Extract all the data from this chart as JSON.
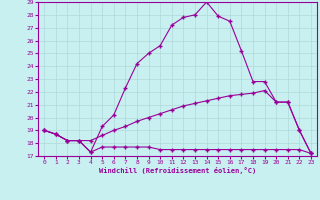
{
  "xlabel": "Windchill (Refroidissement éolien,°C)",
  "bg_color": "#c8f0f0",
  "line_color": "#990099",
  "grid_color": "#b0d8d8",
  "xlim": [
    -0.5,
    23.5
  ],
  "ylim": [
    17,
    29
  ],
  "yticks": [
    17,
    18,
    19,
    20,
    21,
    22,
    23,
    24,
    25,
    26,
    27,
    28,
    29
  ],
  "xticks": [
    0,
    1,
    2,
    3,
    4,
    5,
    6,
    7,
    8,
    9,
    10,
    11,
    12,
    13,
    14,
    15,
    16,
    17,
    18,
    19,
    20,
    21,
    22,
    23
  ],
  "curve1_x": [
    0,
    1,
    2,
    3,
    4,
    5,
    6,
    7,
    8,
    9,
    10,
    11,
    12,
    13,
    14,
    15,
    16,
    17,
    18,
    19,
    20,
    21,
    22,
    23
  ],
  "curve1_y": [
    19.0,
    18.7,
    18.2,
    18.2,
    17.3,
    19.3,
    20.2,
    22.3,
    24.2,
    25.0,
    25.6,
    27.2,
    27.8,
    28.0,
    29.0,
    27.9,
    27.5,
    25.2,
    22.8,
    22.8,
    21.2,
    21.2,
    19.0,
    17.2
  ],
  "curve2_x": [
    0,
    1,
    2,
    3,
    4,
    5,
    6,
    7,
    8,
    9,
    10,
    11,
    12,
    13,
    14,
    15,
    16,
    17,
    18,
    19,
    20,
    21,
    22,
    23
  ],
  "curve2_y": [
    19.0,
    18.7,
    18.2,
    18.2,
    18.2,
    18.6,
    19.0,
    19.3,
    19.7,
    20.0,
    20.3,
    20.6,
    20.9,
    21.1,
    21.3,
    21.5,
    21.7,
    21.8,
    21.9,
    22.1,
    21.2,
    21.2,
    19.0,
    17.2
  ],
  "curve3_x": [
    0,
    1,
    2,
    3,
    4,
    5,
    6,
    7,
    8,
    9,
    10,
    11,
    12,
    13,
    14,
    15,
    16,
    17,
    18,
    19,
    20,
    21,
    22,
    23
  ],
  "curve3_y": [
    19.0,
    18.7,
    18.2,
    18.2,
    17.3,
    17.7,
    17.7,
    17.7,
    17.7,
    17.7,
    17.5,
    17.5,
    17.5,
    17.5,
    17.5,
    17.5,
    17.5,
    17.5,
    17.5,
    17.5,
    17.5,
    17.5,
    17.5,
    17.2
  ]
}
